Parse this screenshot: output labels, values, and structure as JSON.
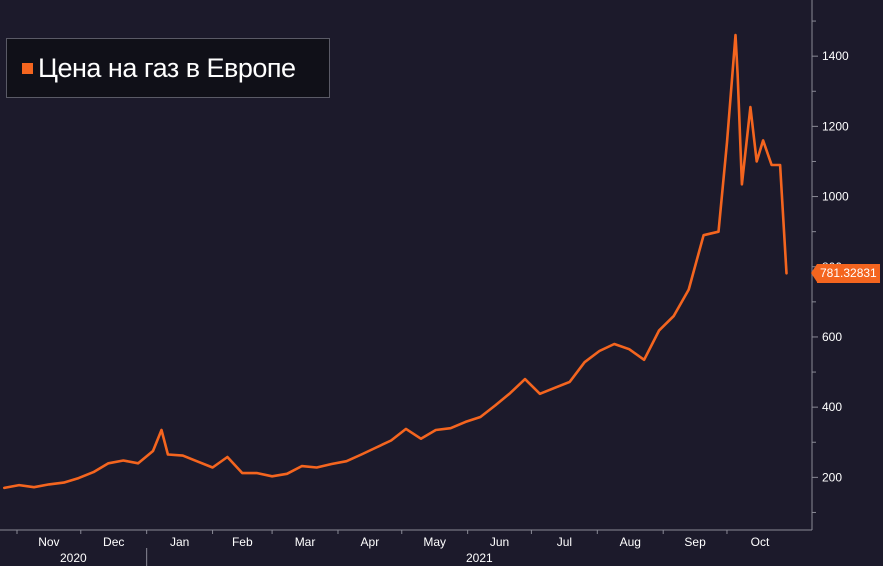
{
  "chart_data": {
    "type": "line",
    "title": "",
    "xlabel": "",
    "ylabel": "",
    "legend": {
      "position": "top-left"
    },
    "series": [
      {
        "name": "Цена на газ в Европе",
        "color": "#f4651f",
        "x": [
          "2020-10-26",
          "2020-11-02",
          "2020-11-09",
          "2020-11-16",
          "2020-11-23",
          "2020-11-30",
          "2020-12-07",
          "2020-12-14",
          "2020-12-21",
          "2020-12-28",
          "2021-01-04",
          "2021-01-08",
          "2021-01-11",
          "2021-01-18",
          "2021-01-25",
          "2021-02-01",
          "2021-02-08",
          "2021-02-15",
          "2021-02-22",
          "2021-03-01",
          "2021-03-08",
          "2021-03-15",
          "2021-03-22",
          "2021-03-29",
          "2021-04-05",
          "2021-04-12",
          "2021-04-19",
          "2021-04-26",
          "2021-05-03",
          "2021-05-10",
          "2021-05-17",
          "2021-05-24",
          "2021-05-31",
          "2021-06-07",
          "2021-06-14",
          "2021-06-21",
          "2021-06-28",
          "2021-07-05",
          "2021-07-12",
          "2021-07-19",
          "2021-07-26",
          "2021-08-02",
          "2021-08-09",
          "2021-08-16",
          "2021-08-23",
          "2021-08-30",
          "2021-09-06",
          "2021-09-13",
          "2021-09-20",
          "2021-09-27",
          "2021-10-01",
          "2021-10-05",
          "2021-10-06",
          "2021-10-08",
          "2021-10-12",
          "2021-10-15",
          "2021-10-18",
          "2021-10-22",
          "2021-10-26",
          "2021-10-29"
        ],
        "values": [
          170,
          178,
          172,
          180,
          185,
          198,
          215,
          240,
          248,
          240,
          275,
          335,
          265,
          262,
          245,
          228,
          258,
          212,
          212,
          203,
          210,
          232,
          228,
          238,
          246,
          265,
          285,
          305,
          338,
          310,
          335,
          340,
          358,
          372,
          405,
          440,
          480,
          438,
          455,
          472,
          528,
          560,
          580,
          565,
          535,
          618,
          660,
          735,
          890,
          900,
          1155,
          1460,
          1350,
          1035,
          1255,
          1100,
          1160,
          1090,
          1090,
          781.32831
        ]
      }
    ],
    "y_axis": {
      "position": "right",
      "ylim": [
        50,
        1560
      ],
      "ticks": [
        200,
        400,
        600,
        800,
        1000,
        1200,
        1400
      ]
    },
    "x_axis": {
      "month_ticks": [
        {
          "date": "2020-11-01",
          "label": "Nov"
        },
        {
          "date": "2020-12-01",
          "label": "Dec"
        },
        {
          "date": "2021-01-01",
          "label": "Jan"
        },
        {
          "date": "2021-02-01",
          "label": "Feb"
        },
        {
          "date": "2021-03-01",
          "label": "Mar"
        },
        {
          "date": "2021-04-01",
          "label": "Apr"
        },
        {
          "date": "2021-05-01",
          "label": "May"
        },
        {
          "date": "2021-06-01",
          "label": "Jun"
        },
        {
          "date": "2021-07-01",
          "label": "Jul"
        },
        {
          "date": "2021-08-01",
          "label": "Aug"
        },
        {
          "date": "2021-09-01",
          "label": "Sep"
        },
        {
          "date": "2021-10-01",
          "label": "Oct"
        }
      ],
      "year_labels": [
        {
          "label": "2020",
          "from": "2020-10-24",
          "to": "2021-01-01"
        },
        {
          "label": "2021",
          "from": "2021-01-01",
          "to": "2021-11-10"
        }
      ],
      "xlim": [
        "2020-10-24",
        "2021-11-10"
      ]
    },
    "last_value_label": "781.32831"
  }
}
